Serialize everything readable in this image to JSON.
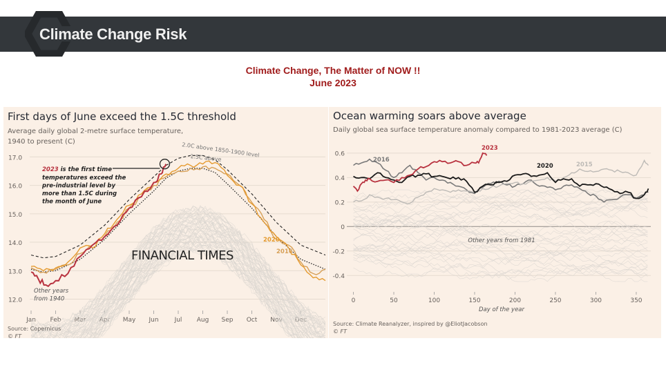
{
  "header": {
    "title": "Climate Change Risk"
  },
  "headline": {
    "line1": "Climate  Change,  The Matter  of NOW  !!",
    "line2": "June 2023"
  },
  "colors": {
    "banner": "#33373b",
    "headline": "#a01c1c",
    "panel_bg": "#fbf0e6",
    "y2023": "#b8323f",
    "y2020_left": "#e59a2e",
    "y2016_left": "#d7a057",
    "y2020_right": "#1a1a1a",
    "y2016_right": "#7a7a7a",
    "y2015_right": "#bdbab6",
    "others": "#d9d4cf"
  },
  "chart_data": [
    {
      "type": "line",
      "title": "First days of June exceed the 1.5C threshold",
      "subtitle_line1": "Average daily global 2-metre surface temperature,",
      "subtitle_line2": "1940 to present (C)",
      "xlabel": "",
      "ylabel": "",
      "x_ticks": [
        "Jan",
        "Feb",
        "Mar",
        "Apr",
        "May",
        "Jun",
        "Jul",
        "Aug",
        "Sep",
        "Oct",
        "Nov",
        "Dec"
      ],
      "y_ticks": [
        "12.0",
        "13.0",
        "14.0",
        "15.0",
        "16.0",
        "17.0"
      ],
      "ylim": [
        11.6,
        17.3
      ],
      "xlim": [
        0,
        12
      ],
      "series": [
        {
          "name": "2.0C above 1850-1900 level",
          "style": "dashed",
          "x": [
            0,
            0.5,
            1,
            2,
            3,
            4,
            5,
            5.5,
            6,
            6.5,
            7,
            7.5,
            8,
            9,
            10,
            11,
            12
          ],
          "values": [
            13.55,
            13.45,
            13.5,
            13.9,
            14.6,
            15.5,
            16.3,
            16.7,
            16.95,
            17.05,
            17.05,
            16.9,
            16.55,
            15.7,
            14.7,
            13.9,
            13.55
          ]
        },
        {
          "name": "1.5C above",
          "style": "dotted",
          "x": [
            0,
            0.5,
            1,
            2,
            3,
            4,
            5,
            5.5,
            6,
            6.5,
            7,
            7.5,
            8,
            9,
            10,
            11,
            12
          ],
          "values": [
            13.05,
            12.95,
            13.0,
            13.4,
            14.1,
            15.0,
            15.8,
            16.25,
            16.5,
            16.6,
            16.6,
            16.45,
            16.05,
            15.2,
            14.2,
            13.4,
            13.05
          ]
        },
        {
          "name": "2016",
          "x": [
            0,
            0.5,
            1,
            1.5,
            2,
            2.5,
            3,
            3.5,
            4,
            4.5,
            5,
            5.5,
            6,
            6.5,
            7,
            7.5,
            8,
            8.5,
            9,
            9.5,
            10,
            10.5,
            11,
            11.5,
            12
          ],
          "values": [
            13.1,
            12.95,
            13.05,
            13.2,
            13.6,
            13.9,
            14.2,
            14.7,
            15.2,
            15.6,
            16.0,
            16.3,
            16.5,
            16.6,
            16.65,
            16.6,
            16.4,
            16.0,
            15.4,
            14.8,
            14.1,
            13.9,
            13.3,
            12.9,
            13.05
          ]
        },
        {
          "name": "2020",
          "x": [
            0,
            0.5,
            1,
            1.5,
            2,
            2.5,
            3,
            3.5,
            4,
            4.5,
            5,
            5.5,
            6,
            6.5,
            7,
            7.5,
            8,
            8.5,
            9,
            9.5,
            10,
            10.5,
            11,
            11.5,
            12
          ],
          "values": [
            13.15,
            13.0,
            13.1,
            13.3,
            13.8,
            13.8,
            14.3,
            14.8,
            15.3,
            15.7,
            16.1,
            16.4,
            16.6,
            16.7,
            16.75,
            16.8,
            16.35,
            16.0,
            15.35,
            14.7,
            14.2,
            13.8,
            13.2,
            12.75,
            12.65
          ]
        },
        {
          "name": "2023",
          "x": [
            0,
            0.3,
            0.6,
            1,
            1.5,
            2,
            2.5,
            3,
            3.5,
            4,
            4.5,
            5,
            5.3,
            5.5
          ],
          "values": [
            12.95,
            12.7,
            12.5,
            12.65,
            12.9,
            13.5,
            13.9,
            14.2,
            14.6,
            15.2,
            15.6,
            16.1,
            16.4,
            16.75
          ]
        }
      ],
      "annotations": {
        "year_2023": "2023",
        "note": [
          "is the first time",
          "temperatures exceed the",
          "pre-industrial level by",
          "more than 1.5C during",
          "the month of June"
        ],
        "others": [
          "Other years",
          "from 1940"
        ],
        "label_2020": "2020",
        "label_2016": "2016",
        "label_20c": "2.0C above 1850-1900 level",
        "label_15c": "1.5C above",
        "watermark": "FINANCIAL TIMES"
      },
      "source": "Source: Copernicus",
      "copyright": "© FT"
    },
    {
      "type": "line",
      "title": "Ocean warming soars above average",
      "subtitle": "Daily global sea surface temperature anomaly compared to 1981-2023 average (C)",
      "xlabel": "Day of the year",
      "x_ticks": [
        "0",
        "50",
        "100",
        "150",
        "200",
        "250",
        "300",
        "350"
      ],
      "y_ticks": [
        "0.6",
        "0.4",
        "0.2",
        "0",
        "-0.2",
        "-0.4"
      ],
      "xlim": [
        -3,
        368
      ],
      "ylim": [
        -0.5,
        0.65
      ],
      "series": [
        {
          "name": "2016",
          "x": [
            0,
            10,
            20,
            30,
            40,
            50,
            60,
            70,
            80,
            90,
            100,
            110,
            120,
            130,
            140,
            150,
            160,
            170,
            180,
            190,
            200,
            210,
            220,
            230,
            240,
            250,
            260,
            270,
            280,
            290,
            300,
            310,
            320,
            330,
            340,
            350,
            360,
            365
          ],
          "values": [
            0.5,
            0.52,
            0.55,
            0.52,
            0.46,
            0.4,
            0.44,
            0.5,
            0.44,
            0.38,
            0.4,
            0.38,
            0.36,
            0.33,
            0.3,
            0.27,
            0.32,
            0.35,
            0.37,
            0.34,
            0.33,
            0.35,
            0.38,
            0.33,
            0.32,
            0.3,
            0.33,
            0.34,
            0.31,
            0.27,
            0.25,
            0.2,
            0.22,
            0.24,
            0.26,
            0.23,
            0.26,
            0.28
          ]
        },
        {
          "name": "2015",
          "x": [
            0,
            10,
            20,
            30,
            40,
            50,
            60,
            70,
            80,
            90,
            100,
            110,
            120,
            130,
            140,
            150,
            160,
            170,
            180,
            190,
            200,
            210,
            220,
            230,
            240,
            250,
            260,
            270,
            280,
            290,
            300,
            310,
            320,
            330,
            340,
            350,
            360,
            365
          ],
          "values": [
            0.2,
            0.21,
            0.26,
            0.24,
            0.23,
            0.22,
            0.2,
            0.19,
            0.24,
            0.28,
            0.31,
            0.3,
            0.28,
            0.3,
            0.29,
            0.28,
            0.31,
            0.32,
            0.33,
            0.35,
            0.36,
            0.35,
            0.37,
            0.38,
            0.4,
            0.37,
            0.4,
            0.44,
            0.47,
            0.45,
            0.45,
            0.47,
            0.46,
            0.45,
            0.44,
            0.42,
            0.54,
            0.5
          ]
        },
        {
          "name": "2020",
          "x": [
            0,
            10,
            20,
            30,
            40,
            50,
            60,
            70,
            80,
            90,
            100,
            110,
            120,
            130,
            140,
            150,
            160,
            170,
            180,
            190,
            200,
            210,
            220,
            230,
            240,
            250,
            260,
            270,
            280,
            290,
            300,
            310,
            320,
            330,
            340,
            350,
            360,
            365
          ],
          "values": [
            0.41,
            0.4,
            0.39,
            0.44,
            0.4,
            0.38,
            0.36,
            0.41,
            0.42,
            0.43,
            0.41,
            0.41,
            0.39,
            0.4,
            0.37,
            0.28,
            0.33,
            0.34,
            0.36,
            0.37,
            0.42,
            0.43,
            0.41,
            0.42,
            0.44,
            0.36,
            0.39,
            0.39,
            0.33,
            0.34,
            0.35,
            0.32,
            0.3,
            0.27,
            0.28,
            0.23,
            0.26,
            0.31
          ]
        },
        {
          "name": "2023",
          "x": [
            0,
            5,
            10,
            15,
            20,
            30,
            40,
            50,
            60,
            70,
            80,
            90,
            100,
            110,
            120,
            130,
            140,
            150,
            155,
            160,
            165
          ],
          "values": [
            0.33,
            0.29,
            0.35,
            0.38,
            0.39,
            0.37,
            0.38,
            0.36,
            0.4,
            0.42,
            0.47,
            0.49,
            0.53,
            0.53,
            0.52,
            0.53,
            0.5,
            0.52,
            0.52,
            0.6,
            0.58
          ]
        }
      ],
      "annotations": {
        "label_2016": "2016",
        "label_2015": "2015",
        "label_2020": "2020",
        "label_2023": "2023",
        "others": "Other years from 1981"
      },
      "source": "Source: Climate Reanalyzer, inspired by @EliotJacobson",
      "copyright": "© FT"
    }
  ]
}
